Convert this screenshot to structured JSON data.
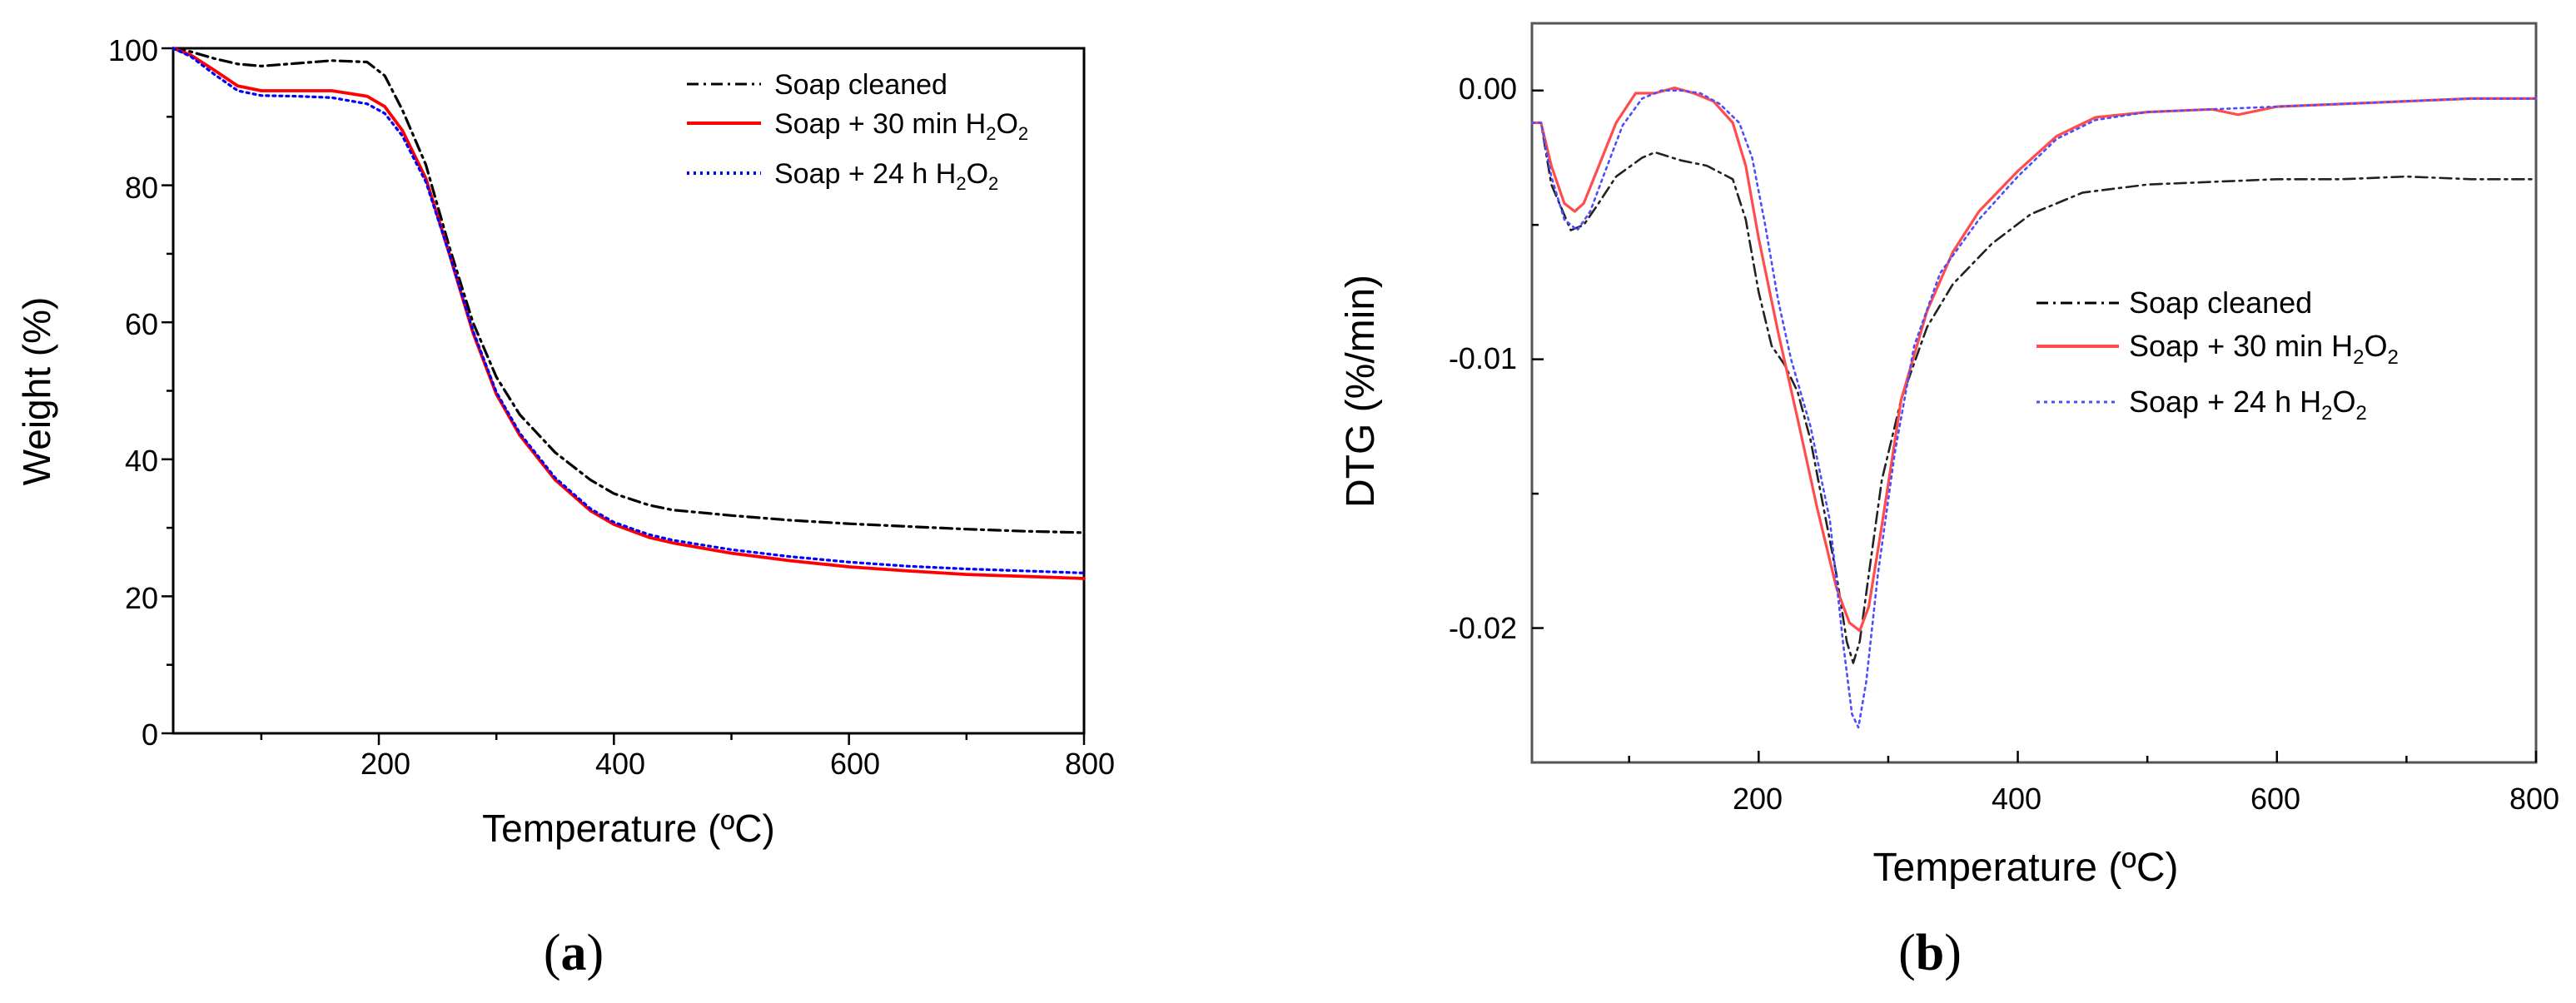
{
  "chart_data": [
    {
      "type": "line",
      "panel_label": "(a)",
      "xlabel": "Temperature (ºC)",
      "ylabel": "Weight (%)",
      "xlim": [
        25,
        800
      ],
      "ylim": [
        0,
        100
      ],
      "x_ticks": [
        "200",
        "400",
        "600",
        "800"
      ],
      "y_ticks": [
        "0",
        "20",
        "40",
        "60",
        "80",
        "100"
      ],
      "legend_position": "top-right",
      "series": [
        {
          "name": "Soap cleaned",
          "color": "#000000",
          "style": "dash-dot",
          "x": [
            25,
            40,
            60,
            80,
            100,
            130,
            160,
            190,
            205,
            220,
            240,
            260,
            280,
            300,
            320,
            350,
            380,
            400,
            430,
            450,
            500,
            550,
            600,
            650,
            700,
            750,
            800
          ],
          "y": [
            100,
            99.5,
            98.5,
            97.7,
            97.4,
            97.8,
            98.2,
            98,
            96,
            91,
            83,
            71,
            60,
            52,
            46.5,
            41,
            37,
            35,
            33.3,
            32.6,
            31.8,
            31.1,
            30.6,
            30.2,
            29.8,
            29.5,
            29.3
          ]
        },
        {
          "name": "Soap + 30 min H2O2",
          "color": "#ff0000",
          "style": "solid",
          "x": [
            25,
            40,
            60,
            80,
            100,
            130,
            160,
            190,
            205,
            220,
            240,
            260,
            280,
            300,
            320,
            350,
            380,
            400,
            430,
            450,
            500,
            550,
            600,
            650,
            700,
            750,
            800
          ],
          "y": [
            100,
            99,
            96.8,
            94.5,
            93.8,
            93.8,
            93.8,
            93,
            91.5,
            88,
            81,
            70,
            58.5,
            49.5,
            43.5,
            37,
            32.5,
            30.5,
            28.6,
            27.8,
            26.3,
            25.2,
            24.3,
            23.7,
            23.2,
            22.9,
            22.6
          ]
        },
        {
          "name": "Soap + 24 h H2O2",
          "color": "#0000ff",
          "style": "dotted",
          "x": [
            25,
            40,
            60,
            80,
            100,
            130,
            160,
            190,
            205,
            220,
            240,
            260,
            280,
            300,
            320,
            350,
            380,
            400,
            430,
            450,
            500,
            550,
            600,
            650,
            700,
            750,
            800
          ],
          "y": [
            100,
            98.8,
            96.2,
            93.8,
            93.1,
            93,
            92.8,
            91.9,
            90.5,
            87.2,
            80.5,
            70,
            58.8,
            49.8,
            43.8,
            37.3,
            32.8,
            30.8,
            29,
            28.2,
            26.8,
            25.8,
            25,
            24.4,
            24,
            23.7,
            23.4
          ]
        }
      ]
    },
    {
      "type": "line",
      "panel_label": "(b)",
      "xlabel": "Temperature (ºC)",
      "ylabel": "DTG (%/min)",
      "xlim": [
        25,
        800
      ],
      "ylim": [
        -0.025,
        0.0025
      ],
      "x_ticks": [
        "200",
        "400",
        "600",
        "800"
      ],
      "y_ticks": [
        "0.00",
        "-0.01",
        "-0.02"
      ],
      "y_tick_values": [
        0,
        -0.01,
        -0.02
      ],
      "legend_position": "center-right",
      "series": [
        {
          "name": "Soap cleaned",
          "color": "#000000",
          "style": "dash-dot",
          "x": [
            25,
            32,
            40,
            55,
            65,
            75,
            90,
            110,
            120,
            140,
            160,
            180,
            190,
            200,
            210,
            220,
            230,
            240,
            250,
            260,
            268,
            273,
            278,
            285,
            295,
            310,
            330,
            350,
            380,
            410,
            450,
            500,
            550,
            600,
            650,
            700,
            750,
            800
          ],
          "y": [
            -0.0012,
            -0.0012,
            -0.0035,
            -0.0052,
            -0.005,
            -0.0043,
            -0.0032,
            -0.0025,
            -0.0023,
            -0.0026,
            -0.0028,
            -0.0033,
            -0.0048,
            -0.0075,
            -0.0095,
            -0.0102,
            -0.0112,
            -0.013,
            -0.0155,
            -0.018,
            -0.0205,
            -0.0213,
            -0.0205,
            -0.018,
            -0.0145,
            -0.0115,
            -0.0088,
            -0.0072,
            -0.0057,
            -0.0046,
            -0.0038,
            -0.0035,
            -0.0034,
            -0.0033,
            -0.0033,
            -0.0032,
            -0.0033,
            -0.0033
          ]
        },
        {
          "name": "Soap + 30 min H2O2",
          "color": "#ff0000",
          "style": "solid",
          "x": [
            25,
            32,
            40,
            50,
            58,
            65,
            75,
            90,
            105,
            120,
            135,
            150,
            165,
            180,
            190,
            200,
            215,
            230,
            245,
            260,
            270,
            278,
            285,
            295,
            310,
            330,
            350,
            370,
            400,
            430,
            460,
            500,
            550,
            570,
            600,
            650,
            700,
            750,
            800
          ],
          "y": [
            -0.0012,
            -0.0012,
            -0.0028,
            -0.0042,
            -0.0045,
            -0.0042,
            -0.003,
            -0.0012,
            -0.0001,
            -0.0001,
            0.0001,
            -0.0001,
            -0.0004,
            -0.0012,
            -0.0028,
            -0.0055,
            -0.009,
            -0.0122,
            -0.0155,
            -0.0185,
            -0.0198,
            -0.0201,
            -0.0192,
            -0.0162,
            -0.0115,
            -0.0082,
            -0.006,
            -0.0045,
            -0.003,
            -0.0017,
            -0.001,
            -0.0008,
            -0.0007,
            -0.0009,
            -0.0006,
            -0.0005,
            -0.0004,
            -0.0003,
            -0.0003
          ]
        },
        {
          "name": "Soap + 24 h H2O2",
          "color": "#0000ff",
          "style": "dotted",
          "x": [
            25,
            32,
            40,
            50,
            60,
            70,
            80,
            95,
            110,
            125,
            140,
            155,
            170,
            185,
            195,
            205,
            215,
            225,
            240,
            255,
            265,
            272,
            277,
            283,
            292,
            305,
            320,
            340,
            370,
            400,
            430,
            460,
            500,
            550,
            600,
            650,
            700,
            750,
            800
          ],
          "y": [
            -0.0012,
            -0.0012,
            -0.0032,
            -0.0048,
            -0.0052,
            -0.0045,
            -0.0032,
            -0.0013,
            -0.0003,
            0,
            0,
            -0.0001,
            -0.0005,
            -0.0012,
            -0.0025,
            -0.005,
            -0.0078,
            -0.01,
            -0.0125,
            -0.016,
            -0.0205,
            -0.0232,
            -0.0237,
            -0.022,
            -0.018,
            -0.0135,
            -0.0095,
            -0.0068,
            -0.0048,
            -0.0032,
            -0.0018,
            -0.0011,
            -0.0008,
            -0.0007,
            -0.0006,
            -0.0005,
            -0.0004,
            -0.0003,
            -0.0003
          ]
        }
      ]
    }
  ],
  "legend_a": {
    "label_soap_cleaned": "Soap cleaned",
    "label_30min_prefix": "Soap + 30 min H",
    "label_24h_prefix": "Soap + 24 h H",
    "sub_2": "2",
    "o_letter": "O"
  },
  "legend_b": {
    "label_soap_cleaned": "Soap cleaned",
    "label_30min_prefix": "Soap + 30 min H",
    "label_24h_prefix": "Soap + 24 h H",
    "sub_2": "2",
    "o_letter": "O"
  },
  "captions": {
    "a_letter": "a",
    "b_letter": "b",
    "open_paren": "(",
    "close_paren": ")"
  }
}
